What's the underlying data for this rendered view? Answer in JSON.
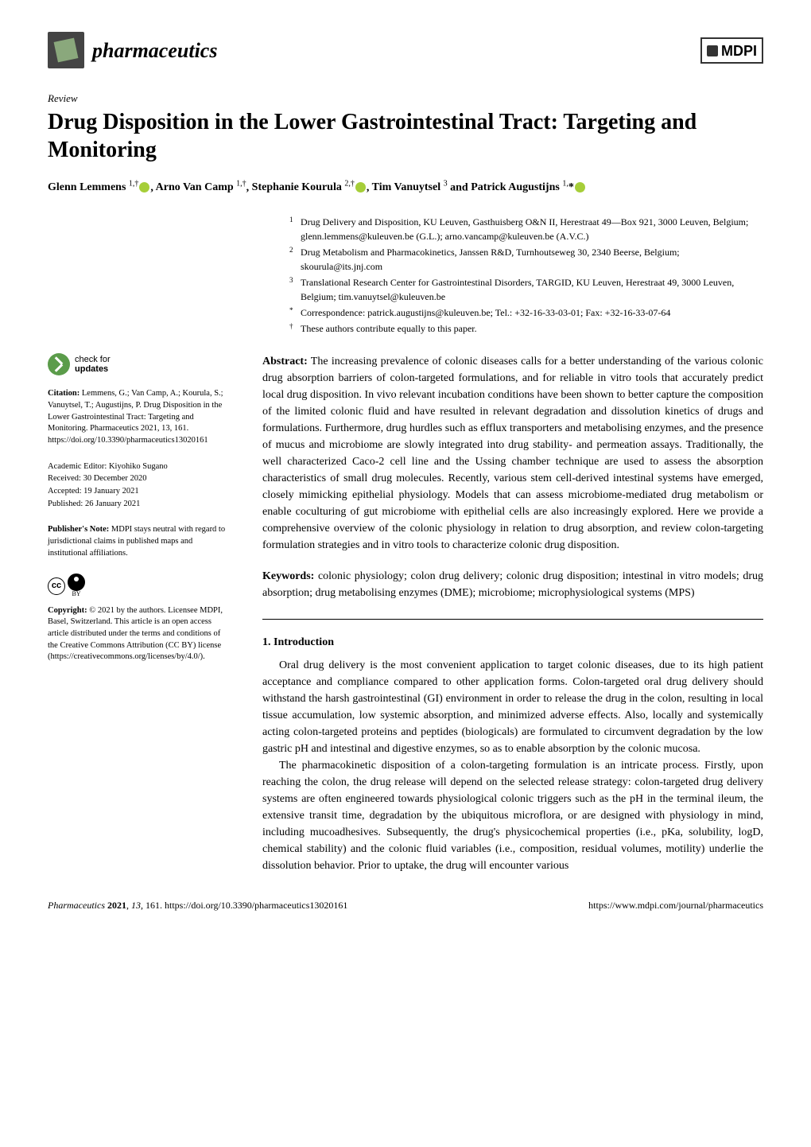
{
  "journal": {
    "name": "pharmaceutics",
    "publisher_logo": "MDPI"
  },
  "article": {
    "type": "Review",
    "title": "Drug Disposition in the Lower Gastrointestinal Tract: Targeting and Monitoring",
    "authors_html": "Glenn Lemmens <sup>1,†</sup>⬤, Arno Van Camp <sup>1,†</sup>, Stephanie Kourula <sup>2,†</sup>⬤, Tim Vanuytsel <sup>3</sup> and Patrick Augustijns <sup>1,</sup>*⬤",
    "authors": [
      {
        "name": "Glenn Lemmens",
        "sup": "1,†",
        "orcid": true
      },
      {
        "name": "Arno Van Camp",
        "sup": "1,†",
        "orcid": false
      },
      {
        "name": "Stephanie Kourula",
        "sup": "2,†",
        "orcid": true
      },
      {
        "name": "Tim Vanuytsel",
        "sup": "3",
        "orcid": false
      },
      {
        "name": "Patrick Augustijns",
        "sup": "1,*",
        "orcid": true
      }
    ]
  },
  "affiliations": [
    {
      "sup": "1",
      "text": "Drug Delivery and Disposition, KU Leuven, Gasthuisberg O&N II, Herestraat 49—Box 921, 3000 Leuven, Belgium; glenn.lemmens@kuleuven.be (G.L.); arno.vancamp@kuleuven.be (A.V.C.)"
    },
    {
      "sup": "2",
      "text": "Drug Metabolism and Pharmacokinetics, Janssen R&D, Turnhoutseweg 30, 2340 Beerse, Belgium; skourula@its.jnj.com"
    },
    {
      "sup": "3",
      "text": "Translational Research Center for Gastrointestinal Disorders, TARGID, KU Leuven, Herestraat 49, 3000 Leuven, Belgium; tim.vanuytsel@kuleuven.be"
    },
    {
      "sup": "*",
      "text": "Correspondence: patrick.augustijns@kuleuven.be; Tel.: +32-16-33-03-01; Fax: +32-16-33-07-64"
    },
    {
      "sup": "†",
      "text": "These authors contribute equally to this paper."
    }
  ],
  "check_updates": {
    "line1": "check for",
    "line2": "updates"
  },
  "citation": {
    "label": "Citation:",
    "text": "Lemmens, G.; Van Camp, A.; Kourula, S.; Vanuytsel, T.; Augustijns, P. Drug Disposition in the Lower Gastrointestinal Tract: Targeting and Monitoring. Pharmaceutics 2021, 13, 161. https://doi.org/10.3390/pharmaceutics13020161"
  },
  "editorial": {
    "editor": "Academic Editor: Kiyohiko Sugano",
    "received": "Received: 30 December 2020",
    "accepted": "Accepted: 19 January 2021",
    "published": "Published: 26 January 2021"
  },
  "publisher_note": {
    "label": "Publisher's Note:",
    "text": "MDPI stays neutral with regard to jurisdictional claims in published maps and institutional affiliations."
  },
  "copyright": {
    "label": "Copyright:",
    "text": "© 2021 by the authors. Licensee MDPI, Basel, Switzerland. This article is an open access article distributed under the terms and conditions of the Creative Commons Attribution (CC BY) license (https://creativecommons.org/licenses/by/4.0/)."
  },
  "abstract": {
    "label": "Abstract:",
    "text": "The increasing prevalence of colonic diseases calls for a better understanding of the various colonic drug absorption barriers of colon-targeted formulations, and for reliable in vitro tools that accurately predict local drug disposition. In vivo relevant incubation conditions have been shown to better capture the composition of the limited colonic fluid and have resulted in relevant degradation and dissolution kinetics of drugs and formulations. Furthermore, drug hurdles such as efflux transporters and metabolising enzymes, and the presence of mucus and microbiome are slowly integrated into drug stability- and permeation assays. Traditionally, the well characterized Caco-2 cell line and the Ussing chamber technique are used to assess the absorption characteristics of small drug molecules. Recently, various stem cell-derived intestinal systems have emerged, closely mimicking epithelial physiology. Models that can assess microbiome-mediated drug metabolism or enable coculturing of gut microbiome with epithelial cells are also increasingly explored. Here we provide a comprehensive overview of the colonic physiology in relation to drug absorption, and review colon-targeting formulation strategies and in vitro tools to characterize colonic drug disposition."
  },
  "keywords": {
    "label": "Keywords:",
    "text": "colonic physiology; colon drug delivery; colonic drug disposition; intestinal in vitro models; drug absorption; drug metabolising enzymes (DME); microbiome; microphysiological systems (MPS)"
  },
  "section": {
    "heading": "1. Introduction",
    "p1": "Oral drug delivery is the most convenient application to target colonic diseases, due to its high patient acceptance and compliance compared to other application forms. Colon-targeted oral drug delivery should withstand the harsh gastrointestinal (GI) environment in order to release the drug in the colon, resulting in local tissue accumulation, low systemic absorption, and minimized adverse effects. Also, locally and systemically acting colon-targeted proteins and peptides (biologicals) are formulated to circumvent degradation by the low gastric pH and intestinal and digestive enzymes, so as to enable absorption by the colonic mucosa.",
    "p2": "The pharmacokinetic disposition of a colon-targeting formulation is an intricate process. Firstly, upon reaching the colon, the drug release will depend on the selected release strategy: colon-targeted drug delivery systems are often engineered towards physiological colonic triggers such as the pH in the terminal ileum, the extensive transit time, degradation by the ubiquitous microflora, or are designed with physiology in mind, including mucoadhesives. Subsequently, the drug's physicochemical properties (i.e., pKa, solubility, logD, chemical stability) and the colonic fluid variables (i.e., composition, residual volumes, motility) underlie the dissolution behavior. Prior to uptake, the drug will encounter various"
  },
  "footer": {
    "left_italic": "Pharmaceutics",
    "left_rest": " 2021, 13, 161. https://doi.org/10.3390/pharmaceutics13020161",
    "right": "https://www.mdpi.com/journal/pharmaceutics"
  },
  "colors": {
    "orcid_green": "#a6ce39",
    "check_green": "#5b9c4a",
    "logo_bg": "#444444",
    "logo_leaf": "#8aa87c"
  }
}
